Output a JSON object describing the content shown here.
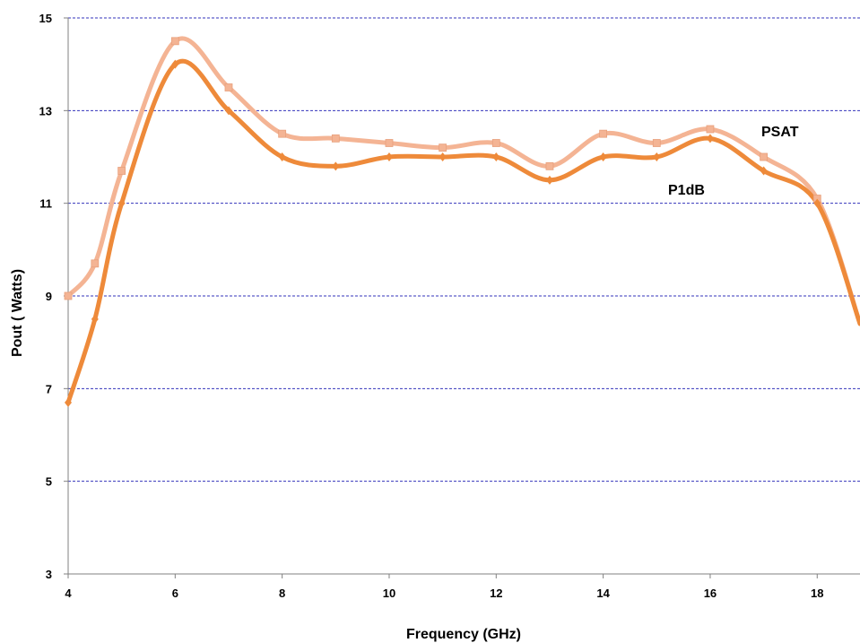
{
  "chart_data": {
    "type": "line",
    "xlabel": "Frequency (GHz)",
    "ylabel": "Pout ( Watts)",
    "xlim": [
      4,
      18.8
    ],
    "ylim": [
      3,
      15
    ],
    "x_ticks": [
      4,
      6,
      8,
      10,
      12,
      14,
      16,
      18
    ],
    "y_ticks": [
      3,
      5,
      7,
      9,
      11,
      13,
      15
    ],
    "grid": {
      "horizontal": true,
      "vertical": false,
      "style": "dashed",
      "color": "#3333bb"
    },
    "axis_color": "#808080",
    "series": [
      {
        "name": "PSAT",
        "color": "#f4b494",
        "marker": "square",
        "x": [
          4,
          4.5,
          5,
          6,
          7,
          8,
          9,
          10,
          11,
          12,
          13,
          14,
          15,
          16,
          17,
          18,
          18.8
        ],
        "y": [
          9.0,
          9.7,
          11.7,
          14.5,
          13.5,
          12.5,
          12.4,
          12.3,
          12.2,
          12.3,
          11.8,
          12.5,
          12.3,
          12.6,
          12.0,
          11.1,
          8.4
        ]
      },
      {
        "name": "P1dB",
        "color": "#ee8a3a",
        "marker": "diamond",
        "x": [
          4,
          4.5,
          5,
          6,
          7,
          8,
          9,
          10,
          11,
          12,
          13,
          14,
          15,
          16,
          17,
          18,
          18.8
        ],
        "y": [
          6.7,
          8.5,
          11.0,
          14.0,
          13.0,
          12.0,
          11.8,
          12.0,
          12.0,
          12.0,
          11.5,
          12.0,
          12.0,
          12.4,
          11.7,
          11.0,
          8.4
        ]
      }
    ],
    "annotations": [
      "PSAT",
      "P1dB"
    ]
  }
}
